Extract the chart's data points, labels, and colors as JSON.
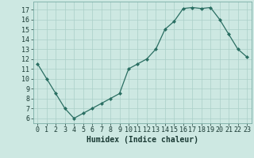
{
  "x": [
    0,
    1,
    2,
    3,
    4,
    5,
    6,
    7,
    8,
    9,
    10,
    11,
    12,
    13,
    14,
    15,
    16,
    17,
    18,
    19,
    20,
    21,
    22,
    23
  ],
  "y": [
    11.5,
    10.0,
    8.5,
    7.0,
    6.0,
    6.5,
    7.0,
    7.5,
    8.0,
    8.5,
    11.0,
    11.5,
    12.0,
    13.0,
    15.0,
    15.8,
    17.1,
    17.2,
    17.1,
    17.2,
    16.0,
    14.5,
    13.0,
    12.2
  ],
  "xlabel": "Humidex (Indice chaleur)",
  "xlim": [
    -0.5,
    23.5
  ],
  "ylim": [
    5.5,
    17.8
  ],
  "yticks": [
    6,
    7,
    8,
    9,
    10,
    11,
    12,
    13,
    14,
    15,
    16,
    17
  ],
  "xticks": [
    0,
    1,
    2,
    3,
    4,
    5,
    6,
    7,
    8,
    9,
    10,
    11,
    12,
    13,
    14,
    15,
    16,
    17,
    18,
    19,
    20,
    21,
    22,
    23
  ],
  "xtick_labels": [
    "0",
    "1",
    "2",
    "3",
    "4",
    "5",
    "6",
    "7",
    "8",
    "9",
    "10",
    "11",
    "12",
    "13",
    "14",
    "15",
    "16",
    "17",
    "18",
    "19",
    "20",
    "21",
    "22",
    "23"
  ],
  "line_color": "#2a6e62",
  "marker": "D",
  "marker_size": 2.0,
  "line_width": 0.9,
  "bg_color": "#cde8e2",
  "grid_color": "#aacfc8",
  "tick_label_fontsize": 6.0,
  "xlabel_fontsize": 7.0
}
